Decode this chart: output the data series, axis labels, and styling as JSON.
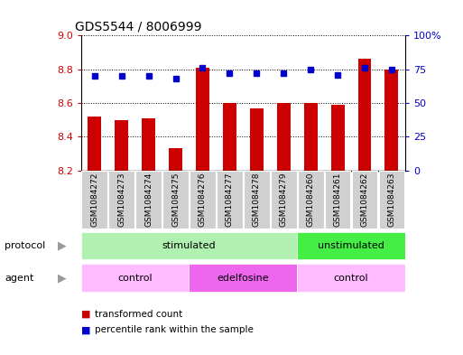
{
  "title": "GDS5544 / 8006999",
  "samples": [
    "GSM1084272",
    "GSM1084273",
    "GSM1084274",
    "GSM1084275",
    "GSM1084276",
    "GSM1084277",
    "GSM1084278",
    "GSM1084279",
    "GSM1084260",
    "GSM1084261",
    "GSM1084262",
    "GSM1084263"
  ],
  "transformed_count": [
    8.52,
    8.5,
    8.51,
    8.33,
    8.81,
    8.6,
    8.57,
    8.6,
    8.6,
    8.59,
    8.86,
    8.8
  ],
  "percentile_rank": [
    70,
    70,
    70,
    68,
    76,
    72,
    72,
    72,
    75,
    71,
    76,
    75
  ],
  "ylim_left": [
    8.2,
    9.0
  ],
  "ylim_right": [
    0,
    100
  ],
  "yticks_left": [
    8.2,
    8.4,
    8.6,
    8.8,
    9.0
  ],
  "yticks_right": [
    0,
    25,
    50,
    75,
    100
  ],
  "ytick_labels_right": [
    "0",
    "25",
    "50",
    "75",
    "100%"
  ],
  "bar_color": "#cc0000",
  "dot_color": "#0000cc",
  "bar_bottom": 8.2,
  "protocol_groups": [
    {
      "label": "stimulated",
      "start": 0,
      "end": 8,
      "color": "#b0f0b0"
    },
    {
      "label": "unstimulated",
      "start": 8,
      "end": 12,
      "color": "#44ee44"
    }
  ],
  "agent_groups": [
    {
      "label": "control",
      "start": 0,
      "end": 4,
      "color": "#ffbbff"
    },
    {
      "label": "edelfosine",
      "start": 4,
      "end": 8,
      "color": "#ee66ee"
    },
    {
      "label": "control",
      "start": 8,
      "end": 12,
      "color": "#ffbbff"
    }
  ],
  "legend_bar_label": "transformed count",
  "legend_dot_label": "percentile rank within the sample",
  "protocol_label": "protocol",
  "agent_label": "agent",
  "bg_color": "#ffffff",
  "tick_label_color_left": "#cc0000",
  "tick_label_color_right": "#0000cc",
  "box_color": "#d0d0d0",
  "arrow_color": "#999999"
}
